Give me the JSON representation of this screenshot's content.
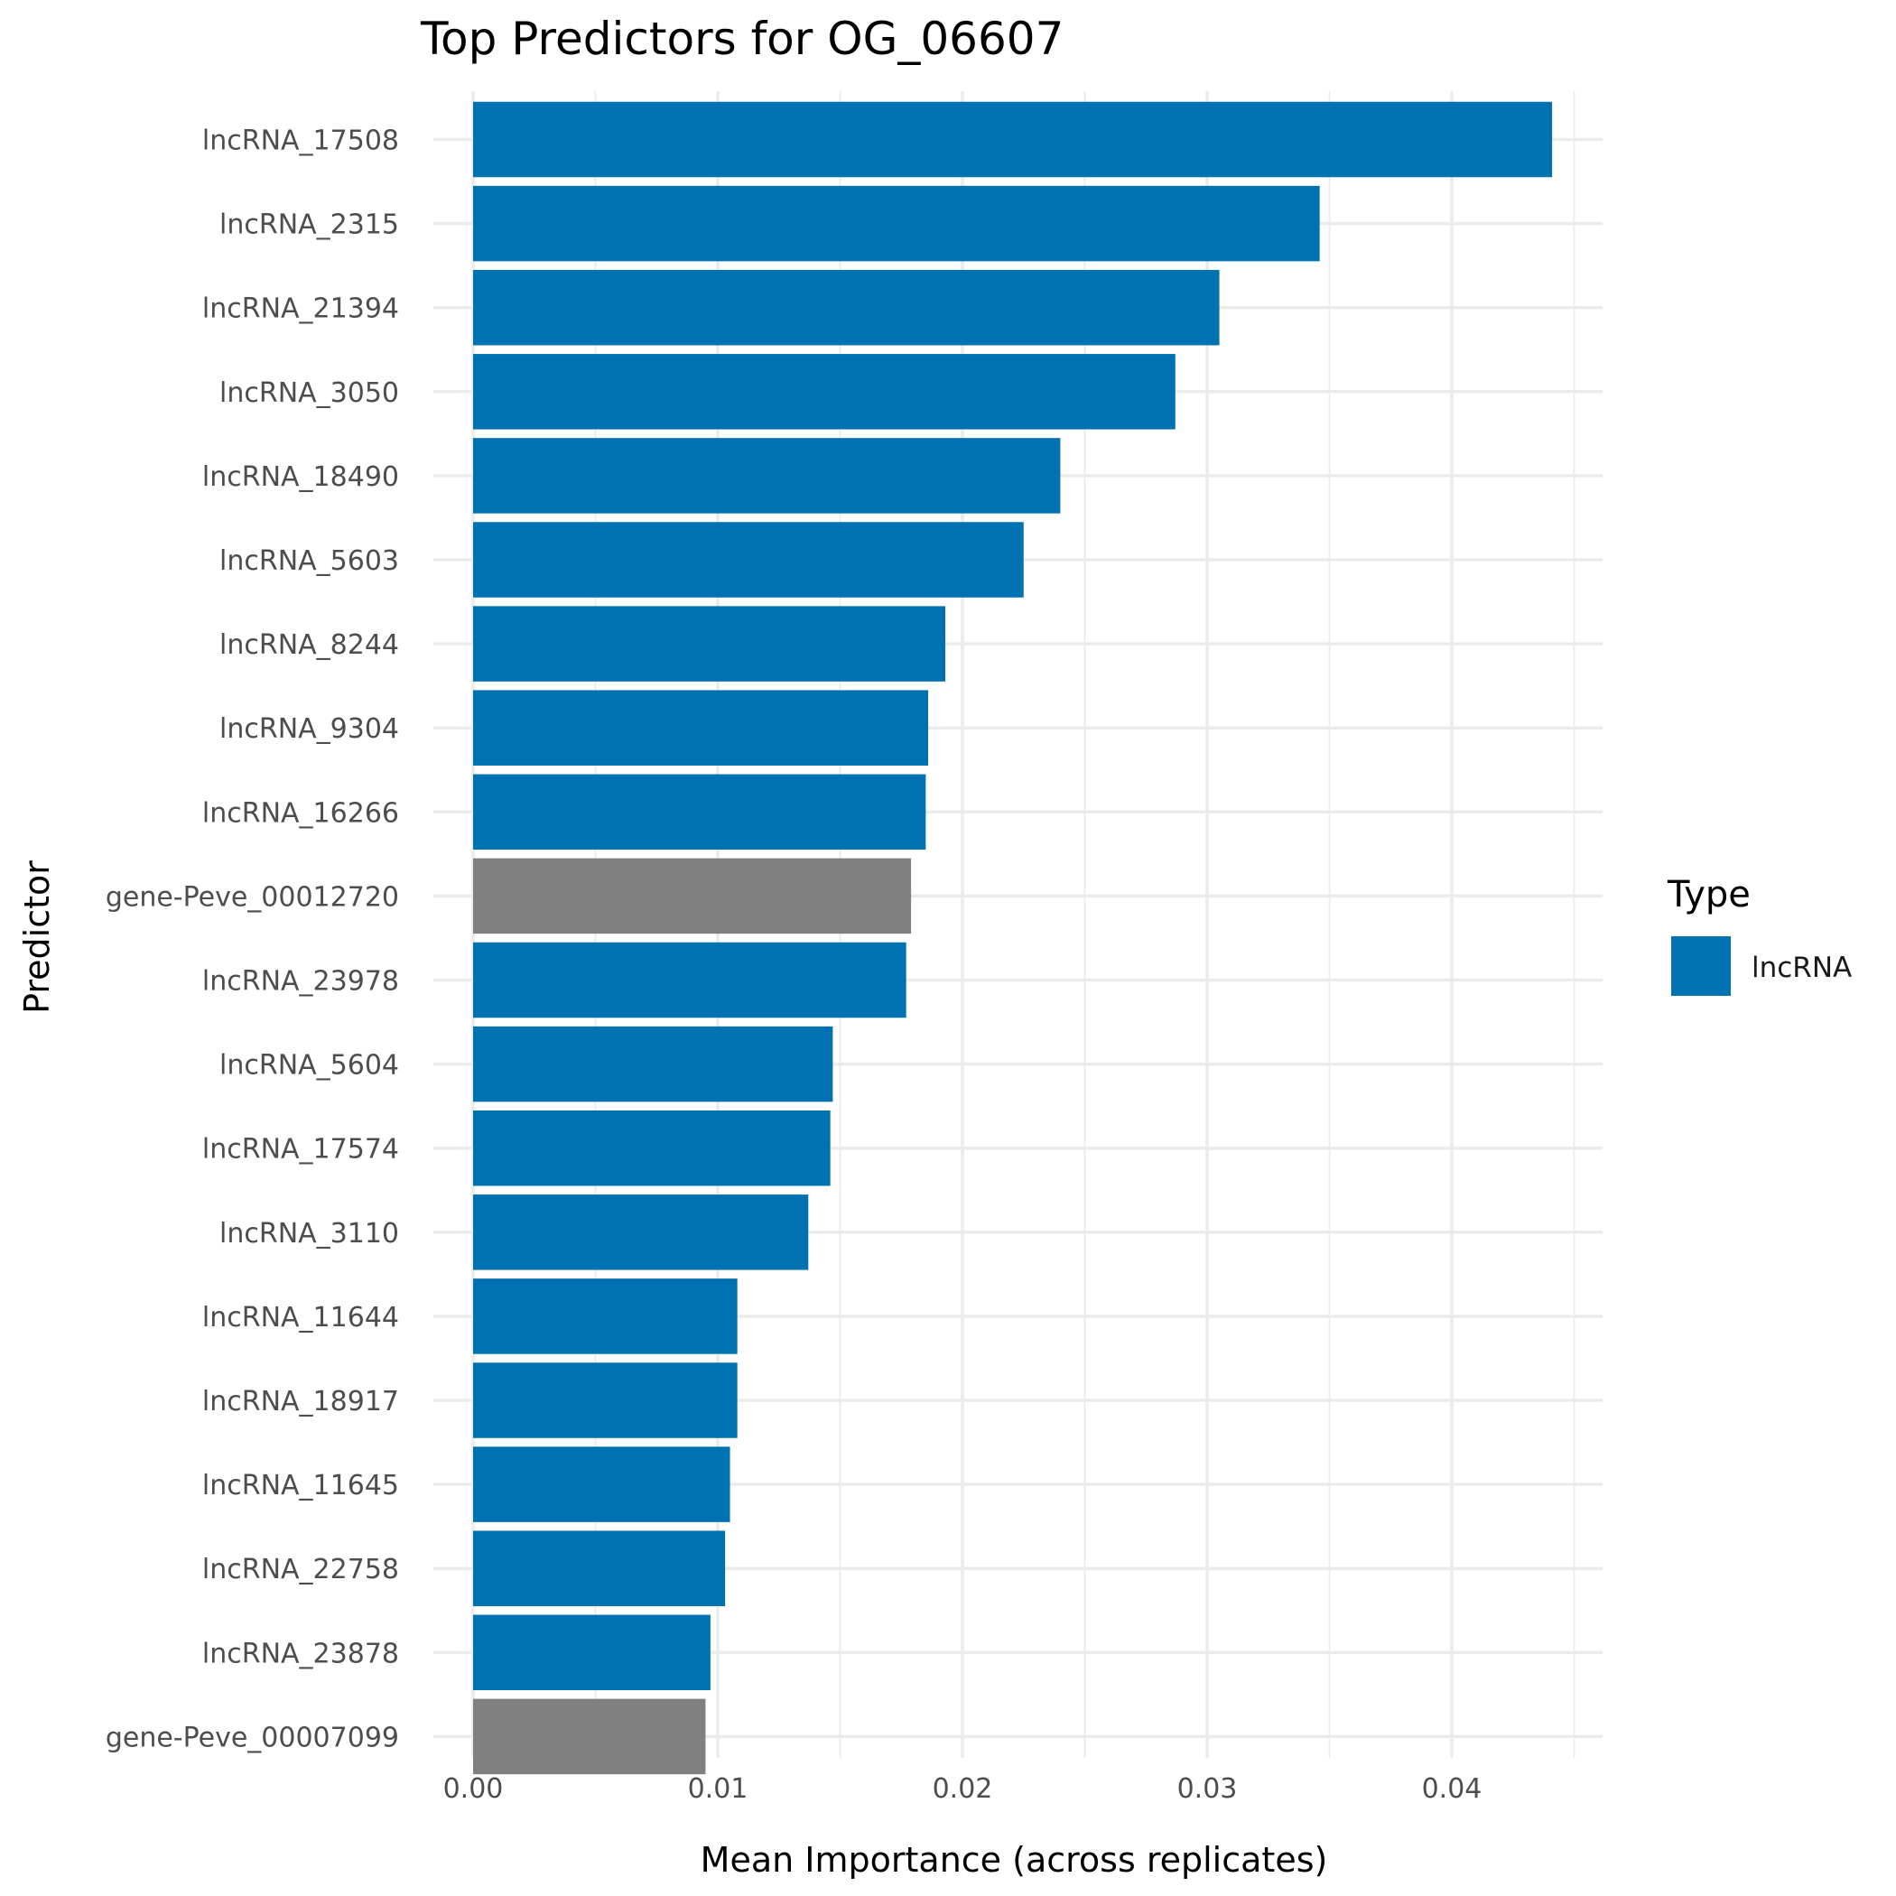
{
  "chart_data": {
    "type": "bar",
    "orientation": "horizontal",
    "title": "Top Predictors for OG_06607",
    "xlabel": "Mean Importance (across replicates)",
    "ylabel": "Predictor",
    "xlim": [
      0,
      0.046
    ],
    "xticks": [
      0.0,
      0.01,
      0.02,
      0.03,
      0.04
    ],
    "xtick_labels": [
      "0.00",
      "0.01",
      "0.02",
      "0.03",
      "0.04"
    ],
    "grid": true,
    "legend": {
      "title": "Type",
      "placement": "right",
      "entries": [
        {
          "label": "lncRNA",
          "color": "#0072b2"
        }
      ]
    },
    "categories": [
      "lncRNA_17508",
      "lncRNA_2315",
      "lncRNA_21394",
      "lncRNA_3050",
      "lncRNA_18490",
      "lncRNA_5603",
      "lncRNA_8244",
      "lncRNA_9304",
      "lncRNA_16266",
      "gene-Peve_00012720",
      "lncRNA_23978",
      "lncRNA_5604",
      "lncRNA_17574",
      "lncRNA_3110",
      "lncRNA_11644",
      "lncRNA_18917",
      "lncRNA_11645",
      "lncRNA_22758",
      "lncRNA_23878",
      "gene-Peve_00007099"
    ],
    "values": [
      0.0441,
      0.0346,
      0.0305,
      0.0287,
      0.024,
      0.0225,
      0.0193,
      0.0186,
      0.0185,
      0.0179,
      0.0177,
      0.0147,
      0.0146,
      0.0137,
      0.0108,
      0.0108,
      0.0105,
      0.0103,
      0.0097,
      0.0095
    ],
    "types": [
      "lncRNA",
      "lncRNA",
      "lncRNA",
      "lncRNA",
      "lncRNA",
      "lncRNA",
      "lncRNA",
      "lncRNA",
      "lncRNA",
      "gene",
      "lncRNA",
      "lncRNA",
      "lncRNA",
      "lncRNA",
      "lncRNA",
      "lncRNA",
      "lncRNA",
      "lncRNA",
      "lncRNA",
      "gene"
    ],
    "colors": {
      "lncRNA": "#0072b2",
      "gene": "#808080"
    }
  }
}
